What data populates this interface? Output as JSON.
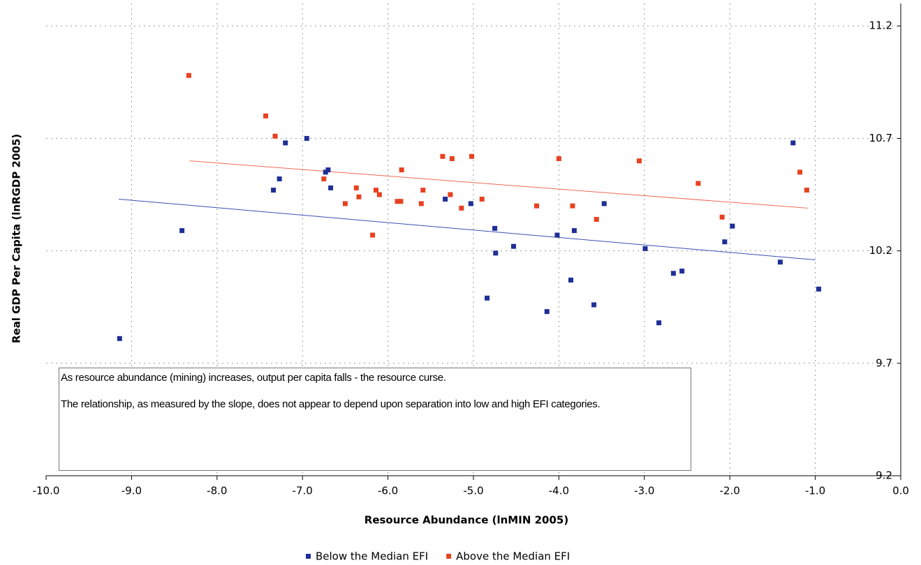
{
  "chart_data": {
    "type": "scatter",
    "x_label": "Resource Abundance (lnMIN 2005)",
    "y_label": "Real GDP Per Capita (lnRGDP 2005)",
    "xlim": [
      -10,
      0
    ],
    "xticks": [
      {
        "value": -10,
        "label": "-10.0"
      },
      {
        "value": -9,
        "label": "-9.0"
      },
      {
        "value": -8,
        "label": "-8.0"
      },
      {
        "value": -7,
        "label": "-7.0"
      },
      {
        "value": -6,
        "label": "-6.0"
      },
      {
        "value": -5,
        "label": "-5.0"
      },
      {
        "value": -4,
        "label": "-4.0"
      },
      {
        "value": -3,
        "label": "-3.0"
      },
      {
        "value": -2,
        "label": "-2.0"
      },
      {
        "value": -1,
        "label": "-1.0"
      },
      {
        "value": 0,
        "label": "0.0"
      }
    ],
    "ylim": [
      9.2,
      11.3
    ],
    "yticks": [
      9.2,
      9.7,
      10.2,
      10.7,
      11.2
    ],
    "grid": true,
    "y_axis_side": "right",
    "legend_position": "bottom",
    "series": [
      {
        "name": "Below the Median EFI",
        "color": "#1f2f95",
        "x": [
          -9.14,
          -8.41,
          -7.34,
          -7.27,
          -7.2,
          -6.95,
          -6.73,
          -6.7,
          -6.67,
          -5.33,
          -5.03,
          -4.84,
          -4.75,
          -4.74,
          -4.53,
          -4.14,
          -4.02,
          -3.86,
          -3.82,
          -3.59,
          -3.47,
          -2.99,
          -2.83,
          -2.66,
          -2.56,
          -2.06,
          -1.97,
          -1.41,
          -1.26,
          -0.96
        ],
        "values": [
          9.81,
          10.29,
          10.47,
          10.52,
          10.68,
          10.7,
          10.55,
          10.56,
          10.48,
          10.43,
          10.41,
          9.99,
          10.3,
          10.19,
          10.22,
          9.93,
          10.27,
          10.07,
          10.29,
          9.96,
          10.41,
          10.21,
          9.88,
          10.1,
          10.11,
          10.24,
          10.31,
          10.15,
          10.68,
          10.03
        ]
      },
      {
        "name": "Above the Median EFI",
        "color": "#e8411f",
        "x": [
          -8.33,
          -7.43,
          -7.32,
          -6.75,
          -6.5,
          -6.37,
          -6.34,
          -6.18,
          -6.14,
          -6.1,
          -5.89,
          -5.85,
          -5.84,
          -5.61,
          -5.59,
          -5.36,
          -5.27,
          -5.25,
          -5.14,
          -5.02,
          -4.9,
          -4.26,
          -4.0,
          -3.84,
          -3.56,
          -3.06,
          -2.37,
          -2.09,
          -1.18,
          -1.1
        ],
        "values": [
          10.98,
          10.8,
          10.71,
          10.52,
          10.41,
          10.48,
          10.44,
          10.27,
          10.47,
          10.45,
          10.42,
          10.42,
          10.56,
          10.41,
          10.47,
          10.62,
          10.45,
          10.61,
          10.39,
          10.62,
          10.43,
          10.4,
          10.61,
          10.4,
          10.34,
          10.6,
          10.5,
          10.35,
          10.55,
          10.47
        ]
      }
    ],
    "trendlines": [
      {
        "color": "#3a4fb0",
        "x": [
          -9.15,
          -1.0
        ],
        "values": [
          10.43,
          10.16
        ]
      },
      {
        "color": "#ef6a55",
        "x": [
          -8.32,
          -1.09
        ],
        "values": [
          10.6,
          10.39
        ]
      }
    ],
    "annotation": [
      "As resource abundance (mining) increases, output per capita falls - the resource curse.",
      "The relationship, as measured by the slope, does not appear to depend upon separation into low and high EFI categories."
    ]
  }
}
